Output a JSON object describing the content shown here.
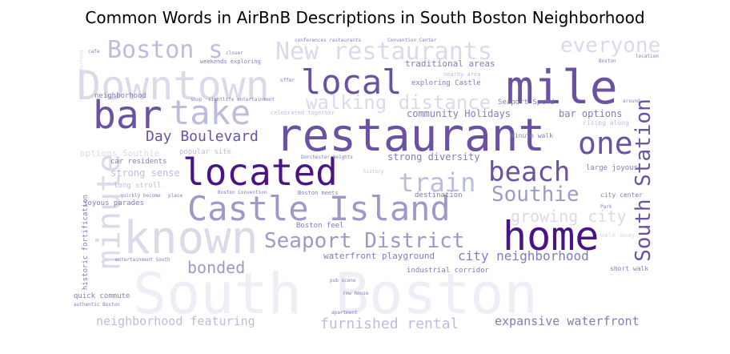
{
  "title": "Common Words in AirBnB Descriptions in South Boston Neighborhood",
  "colors": {
    "dark": "#4a1486",
    "mid_dark": "#6a51a3",
    "mid": "#807dba",
    "light": "#9e9ac8",
    "pale": "#bcbddc",
    "faint": "#dadaeb",
    "ghost": "#efedf5"
  },
  "words": [
    {
      "text": "South Boston",
      "tone": "ghost"
    },
    {
      "text": "restaurant",
      "tone": "mid_dark"
    },
    {
      "text": "located",
      "tone": "dark"
    },
    {
      "text": "mile",
      "tone": "mid_dark"
    },
    {
      "text": "known",
      "tone": "faint"
    },
    {
      "text": "home",
      "tone": "dark"
    },
    {
      "text": "Castle Island",
      "tone": "light"
    },
    {
      "text": "Downtown",
      "tone": "faint"
    },
    {
      "text": "bar",
      "tone": "mid_dark"
    },
    {
      "text": "take",
      "tone": "pale"
    },
    {
      "text": "local",
      "tone": "mid_dark"
    },
    {
      "text": "minute",
      "tone": "faint"
    },
    {
      "text": "South Station",
      "tone": "mid_dark"
    },
    {
      "text": "beach",
      "tone": "mid_dark"
    },
    {
      "text": "one",
      "tone": "mid_dark"
    },
    {
      "text": "Seaport District",
      "tone": "light"
    },
    {
      "text": "Southie",
      "tone": "light"
    },
    {
      "text": "train",
      "tone": "pale"
    },
    {
      "text": "New restaurants",
      "tone": "faint"
    },
    {
      "text": "Boston s",
      "tone": "pale"
    },
    {
      "text": "walking distance",
      "tone": "faint"
    },
    {
      "text": "everyone",
      "tone": "faint"
    },
    {
      "text": "Day Boulevard",
      "tone": "mid_dark"
    },
    {
      "text": "growing city",
      "tone": "faint"
    },
    {
      "text": "bonded",
      "tone": "light"
    },
    {
      "text": "furnished rental",
      "tone": "pale"
    },
    {
      "text": "neighborhood featuring",
      "tone": "pale"
    },
    {
      "text": "expansive waterfront",
      "tone": "mid"
    },
    {
      "text": "city neighborhood",
      "tone": "mid"
    },
    {
      "text": "waterfront playground",
      "tone": "mid"
    },
    {
      "text": "traditional areas",
      "tone": "mid"
    },
    {
      "text": "community Holidays",
      "tone": "mid"
    },
    {
      "text": "strong diversity",
      "tone": "mid"
    },
    {
      "text": "bar options",
      "tone": "mid"
    },
    {
      "text": "strong sense",
      "tone": "pale"
    },
    {
      "text": "options Southie",
      "tone": "faint"
    },
    {
      "text": "destination",
      "tone": "mid"
    },
    {
      "text": "Boston feel",
      "tone": "mid"
    },
    {
      "text": "industrial corridor",
      "tone": "mid"
    },
    {
      "text": "quick commute",
      "tone": "mid"
    },
    {
      "text": "joyous parades",
      "tone": "mid"
    },
    {
      "text": "long stroll",
      "tone": "pale"
    },
    {
      "text": "car residents",
      "tone": "mid"
    },
    {
      "text": "popular site",
      "tone": "pale"
    },
    {
      "text": "neighborhood",
      "tone": "mid"
    },
    {
      "text": "exploring Castle",
      "tone": "mid"
    },
    {
      "text": "nearby area",
      "tone": "pale"
    },
    {
      "text": "Seaport Spend",
      "tone": "mid"
    },
    {
      "text": "minute walk",
      "tone": "mid"
    },
    {
      "text": "large joyous",
      "tone": "mid"
    },
    {
      "text": "city center",
      "tone": "mid"
    },
    {
      "text": "walk away",
      "tone": "faint"
    },
    {
      "text": "short walk",
      "tone": "mid"
    },
    {
      "text": "rising along",
      "tone": "pale"
    },
    {
      "text": "historic fortification",
      "tone": "mid"
    },
    {
      "text": "cafe",
      "tone": "mid"
    },
    {
      "text": "closer",
      "tone": "mid"
    },
    {
      "text": "weekends exploring",
      "tone": "mid"
    },
    {
      "text": "conferences restaurants",
      "tone": "mid"
    },
    {
      "text": "Convention Center",
      "tone": "mid"
    },
    {
      "text": "sightlife entertainment",
      "tone": "mid"
    },
    {
      "text": "celebrated together",
      "tone": "pale"
    },
    {
      "text": "shop",
      "tone": "mid"
    },
    {
      "text": "offer",
      "tone": "mid"
    },
    {
      "text": "Boston",
      "tone": "mid"
    },
    {
      "text": "location",
      "tone": "mid"
    },
    {
      "text": "around",
      "tone": "mid"
    },
    {
      "text": "Park",
      "tone": "mid"
    },
    {
      "text": "Dorchester Heights",
      "tone": "mid"
    },
    {
      "text": "Boston meets",
      "tone": "mid"
    },
    {
      "text": "Boston Convention",
      "tone": "mid"
    },
    {
      "text": "quickly become",
      "tone": "mid"
    },
    {
      "text": "place",
      "tone": "mid"
    },
    {
      "text": "entertainment South",
      "tone": "mid"
    },
    {
      "text": "authentic Boston",
      "tone": "mid"
    },
    {
      "text": "apartment",
      "tone": "mid"
    },
    {
      "text": "row house",
      "tone": "mid"
    },
    {
      "text": "pub scene",
      "tone": "mid"
    },
    {
      "text": "history",
      "tone": "pale"
    },
    {
      "text": "large neighborhood",
      "tone": "faint"
    }
  ]
}
